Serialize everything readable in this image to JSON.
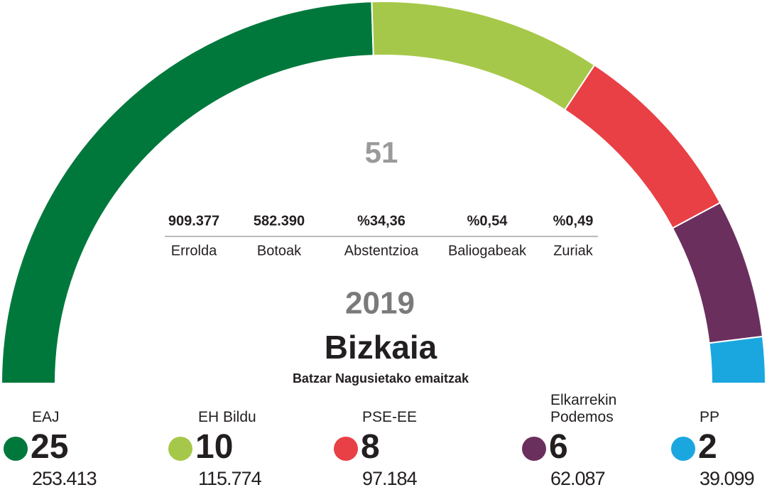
{
  "chart_data": {
    "type": "semicircle",
    "title": "Bizkaia",
    "subtitle": "Batzar Nagusietako emaitzak",
    "year": "2019",
    "total": 51,
    "categories": [
      "EAJ",
      "EH Bildu",
      "PSE-EE",
      "Elkarrekin Podemos",
      "PP"
    ],
    "values": [
      25,
      10,
      8,
      6,
      2
    ],
    "colors": [
      "#00783c",
      "#a6c84a",
      "#e84045",
      "#6b2f5e",
      "#1aa7e0"
    ],
    "votes": [
      253413,
      115774,
      97184,
      62087,
      39099
    ],
    "votes_labels": [
      "253.413",
      "115.774",
      "97.184",
      "62.087",
      "39.099"
    ],
    "stats": [
      {
        "name": "Errolda",
        "value": 909377,
        "label": "909.377"
      },
      {
        "name": "Botoak",
        "value": 582390,
        "label": "582.390"
      },
      {
        "name": "Abstentzioa",
        "value": 34.36,
        "label": "%34,36"
      },
      {
        "name": "Baliogabeak",
        "value": 0.54,
        "label": "%0,54"
      },
      {
        "name": "Zuriak",
        "value": 0.49,
        "label": "%0,49"
      }
    ]
  }
}
